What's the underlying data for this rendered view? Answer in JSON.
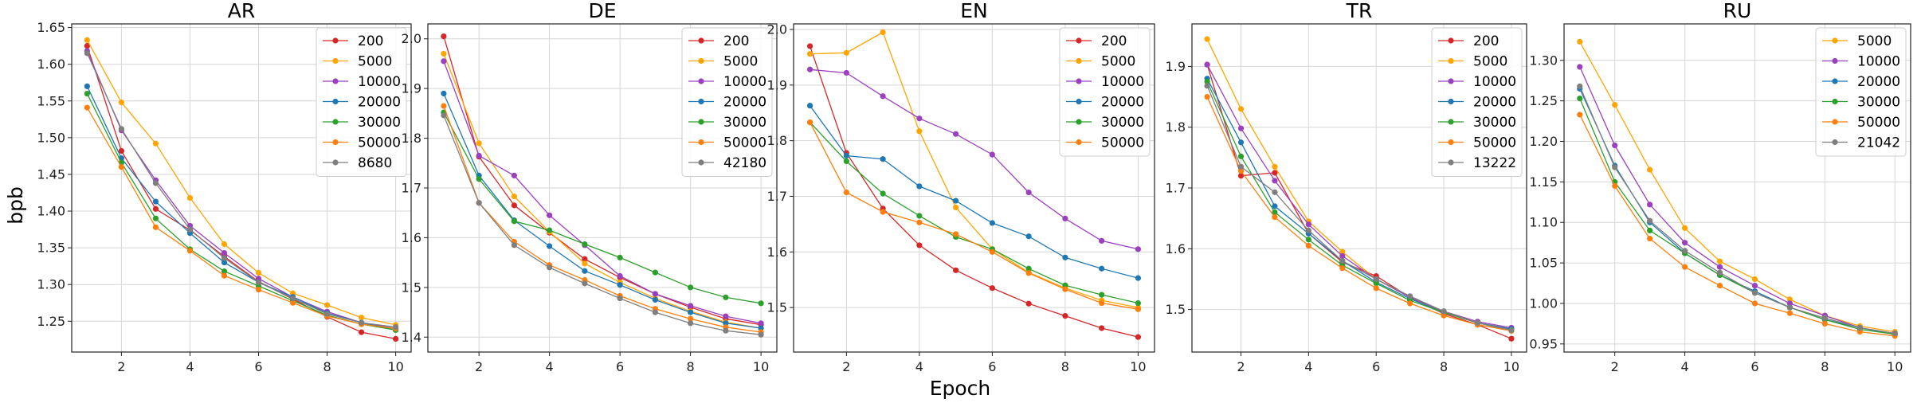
{
  "figure": {
    "ylabel": "bpb",
    "xlabel": "Epoch"
  },
  "colors": {
    "200": "#d62728",
    "5000": "#ffa500",
    "10000": "#9b40bf",
    "20000": "#1f77b4",
    "30000": "#2ca02c",
    "50000": "#ff7f0e",
    "other": "#7f7f7f"
  },
  "chart_data": [
    {
      "type": "line",
      "title": "AR",
      "xlabel": "",
      "ylabel": "bpb",
      "x": [
        1,
        2,
        3,
        4,
        5,
        6,
        7,
        8,
        9,
        10
      ],
      "xticks": [
        2,
        4,
        6,
        8,
        10
      ],
      "xlim": [
        0.55,
        10.45
      ],
      "ylim": [
        1.208,
        1.655
      ],
      "yticks": [
        "1.25",
        "1.30",
        "1.35",
        "1.40",
        "1.45",
        "1.50",
        "1.55",
        "1.60",
        "1.65"
      ],
      "grid": true,
      "legend_position": "upper right",
      "series": [
        {
          "name": "200",
          "color_key": "200",
          "values": [
            1.625,
            1.482,
            1.403,
            1.374,
            1.338,
            1.304,
            1.28,
            1.256,
            1.235,
            1.226
          ]
        },
        {
          "name": "5000",
          "color_key": "5000",
          "values": [
            1.633,
            1.548,
            1.492,
            1.418,
            1.355,
            1.316,
            1.288,
            1.272,
            1.255,
            1.245
          ]
        },
        {
          "name": "10000",
          "color_key": "10000",
          "values": [
            1.618,
            1.51,
            1.442,
            1.38,
            1.343,
            1.308,
            1.283,
            1.263,
            1.248,
            1.24
          ]
        },
        {
          "name": "20000",
          "color_key": "20000",
          "values": [
            1.57,
            1.472,
            1.413,
            1.37,
            1.33,
            1.303,
            1.283,
            1.261,
            1.248,
            1.238
          ]
        },
        {
          "name": "30000",
          "color_key": "30000",
          "values": [
            1.56,
            1.466,
            1.39,
            1.348,
            1.318,
            1.298,
            1.278,
            1.258,
            1.246,
            1.238
          ]
        },
        {
          "name": "50000",
          "color_key": "50000",
          "values": [
            1.541,
            1.46,
            1.378,
            1.346,
            1.312,
            1.293,
            1.275,
            1.257,
            1.246,
            1.24
          ]
        },
        {
          "name": "8680",
          "color_key": "other",
          "values": [
            1.615,
            1.512,
            1.438,
            1.375,
            1.336,
            1.303,
            1.281,
            1.26,
            1.248,
            1.242
          ]
        }
      ]
    },
    {
      "type": "line",
      "title": "DE",
      "xlabel": "",
      "ylabel": "",
      "x": [
        1,
        2,
        3,
        4,
        5,
        6,
        7,
        8,
        9,
        10
      ],
      "xticks": [
        2,
        4,
        6,
        8,
        10
      ],
      "xlim": [
        0.55,
        10.45
      ],
      "ylim": [
        1.37,
        2.03
      ],
      "yticks": [
        "1.4",
        "1.5",
        "1.6",
        "1.7",
        "1.8",
        "1.9",
        "2.0"
      ],
      "grid": true,
      "legend_position": "upper right",
      "series": [
        {
          "name": "200",
          "color_key": "200",
          "values": [
            2.005,
            1.763,
            1.665,
            1.61,
            1.557,
            1.52,
            1.487,
            1.46,
            1.437,
            1.425
          ]
        },
        {
          "name": "5000",
          "color_key": "5000",
          "values": [
            1.97,
            1.79,
            1.683,
            1.612,
            1.548,
            1.51,
            1.478,
            1.452,
            1.43,
            1.418
          ]
        },
        {
          "name": "10000",
          "color_key": "10000",
          "values": [
            1.955,
            1.765,
            1.725,
            1.645,
            1.585,
            1.523,
            1.487,
            1.463,
            1.442,
            1.428
          ]
        },
        {
          "name": "20000",
          "color_key": "20000",
          "values": [
            1.89,
            1.725,
            1.635,
            1.583,
            1.533,
            1.505,
            1.475,
            1.45,
            1.428,
            1.418
          ]
        },
        {
          "name": "30000",
          "color_key": "30000",
          "values": [
            1.852,
            1.718,
            1.633,
            1.615,
            1.587,
            1.56,
            1.53,
            1.5,
            1.48,
            1.468
          ]
        },
        {
          "name": "50000",
          "color_key": "50000",
          "values": [
            1.865,
            1.67,
            1.592,
            1.545,
            1.515,
            1.483,
            1.457,
            1.437,
            1.42,
            1.41
          ]
        },
        {
          "name": "42180",
          "color_key": "other",
          "values": [
            1.846,
            1.67,
            1.585,
            1.54,
            1.508,
            1.478,
            1.45,
            1.428,
            1.413,
            1.405
          ]
        }
      ]
    },
    {
      "type": "line",
      "title": "EN",
      "xlabel": "Epoch",
      "ylabel": "",
      "x": [
        1,
        2,
        3,
        4,
        5,
        6,
        7,
        8,
        9,
        10
      ],
      "xticks": [
        2,
        4,
        6,
        8,
        10
      ],
      "xlim": [
        0.55,
        10.45
      ],
      "ylim": [
        1.42,
        2.01
      ],
      "yticks": [
        "1.5",
        "1.6",
        "1.7",
        "1.8",
        "1.9",
        "2.0"
      ],
      "grid": true,
      "legend_position": "upper right",
      "series": [
        {
          "name": "200",
          "color_key": "200",
          "values": [
            1.97,
            1.778,
            1.678,
            1.612,
            1.567,
            1.535,
            1.507,
            1.485,
            1.463,
            1.447
          ]
        },
        {
          "name": "5000",
          "color_key": "5000",
          "values": [
            1.956,
            1.958,
            1.995,
            1.817,
            1.68,
            1.605,
            1.563,
            1.535,
            1.513,
            1.5
          ]
        },
        {
          "name": "10000",
          "color_key": "10000",
          "values": [
            1.928,
            1.922,
            1.88,
            1.84,
            1.812,
            1.775,
            1.707,
            1.66,
            1.62,
            1.605
          ]
        },
        {
          "name": "20000",
          "color_key": "20000",
          "values": [
            1.863,
            1.773,
            1.767,
            1.718,
            1.692,
            1.652,
            1.628,
            1.59,
            1.57,
            1.553
          ]
        },
        {
          "name": "30000",
          "color_key": "30000",
          "values": [
            1.833,
            1.763,
            1.705,
            1.665,
            1.627,
            1.605,
            1.57,
            1.54,
            1.523,
            1.508
          ]
        },
        {
          "name": "50000",
          "color_key": "50000",
          "values": [
            1.833,
            1.707,
            1.672,
            1.653,
            1.632,
            1.6,
            1.562,
            1.533,
            1.508,
            1.497
          ]
        }
      ]
    },
    {
      "type": "line",
      "title": "TR",
      "xlabel": "",
      "ylabel": "",
      "x": [
        1,
        2,
        3,
        4,
        5,
        6,
        7,
        8,
        9,
        10
      ],
      "xticks": [
        2,
        4,
        6,
        8,
        10
      ],
      "xlim": [
        0.55,
        10.45
      ],
      "ylim": [
        1.43,
        1.97
      ],
      "yticks": [
        "1.5",
        "1.6",
        "1.7",
        "1.8",
        "1.9"
      ],
      "grid": true,
      "legend_position": "upper right",
      "series": [
        {
          "name": "200",
          "color_key": "200",
          "values": [
            1.903,
            1.72,
            1.725,
            1.625,
            1.578,
            1.555,
            1.52,
            1.493,
            1.475,
            1.452
          ]
        },
        {
          "name": "5000",
          "color_key": "5000",
          "values": [
            1.945,
            1.83,
            1.735,
            1.645,
            1.595,
            1.55,
            1.52,
            1.495,
            1.478,
            1.468
          ]
        },
        {
          "name": "10000",
          "color_key": "10000",
          "values": [
            1.903,
            1.798,
            1.712,
            1.64,
            1.588,
            1.55,
            1.52,
            1.497,
            1.48,
            1.47
          ]
        },
        {
          "name": "20000",
          "color_key": "20000",
          "values": [
            1.88,
            1.775,
            1.67,
            1.625,
            1.58,
            1.545,
            1.518,
            1.495,
            1.478,
            1.468
          ]
        },
        {
          "name": "30000",
          "color_key": "30000",
          "values": [
            1.875,
            1.752,
            1.66,
            1.615,
            1.573,
            1.543,
            1.515,
            1.495,
            1.478,
            1.465
          ]
        },
        {
          "name": "50000",
          "color_key": "50000",
          "values": [
            1.85,
            1.728,
            1.652,
            1.605,
            1.568,
            1.535,
            1.51,
            1.49,
            1.475,
            1.465
          ]
        },
        {
          "name": "13222",
          "color_key": "other",
          "values": [
            1.868,
            1.735,
            1.693,
            1.63,
            1.58,
            1.55,
            1.522,
            1.497,
            1.478,
            1.466
          ]
        }
      ]
    },
    {
      "type": "line",
      "title": "RU",
      "xlabel": "",
      "ylabel": "",
      "x": [
        1,
        2,
        3,
        4,
        5,
        6,
        7,
        8,
        9,
        10
      ],
      "xticks": [
        2,
        4,
        6,
        8,
        10
      ],
      "xlim": [
        0.55,
        10.45
      ],
      "ylim": [
        0.94,
        1.345
      ],
      "yticks": [
        "0.95",
        "1.00",
        "1.05",
        "1.10",
        "1.15",
        "1.20",
        "1.25",
        "1.30"
      ],
      "grid": true,
      "legend_position": "upper right",
      "series": [
        {
          "name": "5000",
          "color_key": "5000",
          "values": [
            1.323,
            1.245,
            1.165,
            1.093,
            1.052,
            1.03,
            1.005,
            0.985,
            0.972,
            0.965
          ]
        },
        {
          "name": "10000",
          "color_key": "10000",
          "values": [
            1.292,
            1.195,
            1.122,
            1.075,
            1.045,
            1.022,
            1.0,
            0.985,
            0.97,
            0.963
          ]
        },
        {
          "name": "20000",
          "color_key": "20000",
          "values": [
            1.265,
            1.17,
            1.1,
            1.062,
            1.035,
            1.015,
            0.995,
            0.98,
            0.97,
            0.962
          ]
        },
        {
          "name": "30000",
          "color_key": "30000",
          "values": [
            1.253,
            1.15,
            1.09,
            1.062,
            1.035,
            1.013,
            0.995,
            0.98,
            0.968,
            0.962
          ]
        },
        {
          "name": "50000",
          "color_key": "50000",
          "values": [
            1.233,
            1.145,
            1.08,
            1.045,
            1.022,
            1.0,
            0.988,
            0.975,
            0.965,
            0.96
          ]
        },
        {
          "name": "21042",
          "color_key": "other",
          "values": [
            1.268,
            1.168,
            1.102,
            1.065,
            1.038,
            1.013,
            0.995,
            0.982,
            0.97,
            0.963
          ]
        }
      ]
    }
  ]
}
